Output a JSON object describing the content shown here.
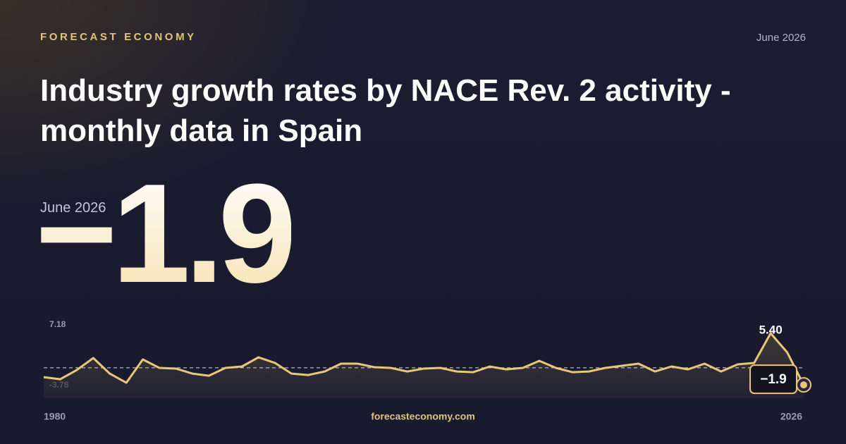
{
  "header": {
    "brand": "FORECAST ECONOMY",
    "date": "June 2026",
    "title": "Industry growth rates by NACE Rev. 2 activity - monthly data in Spain"
  },
  "headline": {
    "label": "June 2026",
    "value": "−1.9"
  },
  "footer": {
    "site": "forecasteconomy.com"
  },
  "chart_data": {
    "type": "line",
    "x": [
      1980,
      1981,
      1982,
      1983,
      1984,
      1985,
      1986,
      1987,
      1988,
      1989,
      1990,
      1991,
      1992,
      1993,
      1994,
      1995,
      1996,
      1997,
      1998,
      1999,
      2000,
      2001,
      2002,
      2003,
      2004,
      2005,
      2006,
      2007,
      2008,
      2009,
      2010,
      2011,
      2012,
      2013,
      2014,
      2015,
      2016,
      2017,
      2018,
      2019,
      2020,
      2021,
      2022,
      2023,
      2024,
      2025,
      2026
    ],
    "series": [
      {
        "color": "#e8c77a",
        "values": [
          -0.8,
          -1.1,
          0.2,
          1.9,
          -0.3,
          -1.6,
          1.7,
          0.5,
          0.4,
          -0.3,
          -0.6,
          0.5,
          0.7,
          2.0,
          1.2,
          -0.3,
          -0.5,
          0.0,
          1.1,
          1.1,
          0.6,
          0.5,
          0.0,
          0.4,
          0.5,
          0.0,
          -0.1,
          0.7,
          0.3,
          0.5,
          1.5,
          0.5,
          -0.1,
          0.0,
          0.5,
          0.8,
          1.1,
          0.0,
          0.7,
          0.3,
          1.1,
          0.0,
          1.0,
          1.2,
          5.4,
          2.7,
          -1.9
        ],
        "value_labels": [
          null,
          null,
          null,
          null,
          null,
          null,
          null,
          null,
          null,
          null,
          null,
          null,
          null,
          null,
          null,
          null,
          null,
          null,
          null,
          null,
          null,
          null,
          null,
          null,
          null,
          null,
          null,
          null,
          null,
          null,
          null,
          null,
          null,
          null,
          null,
          null,
          null,
          null,
          null,
          null,
          null,
          null,
          null,
          null,
          "5.40",
          null,
          "−1.9"
        ]
      }
    ],
    "xlim": [
      1980,
      2026
    ],
    "xticks": [
      1980,
      2026
    ],
    "ylim": [
      -3.78,
      7.18
    ],
    "yticks": [
      -3.78,
      7.18
    ]
  }
}
